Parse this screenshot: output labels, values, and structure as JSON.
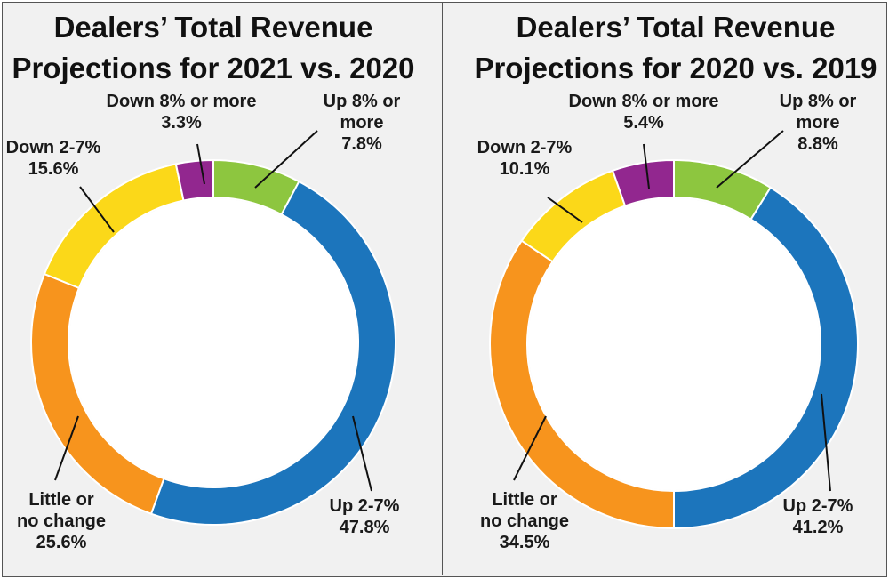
{
  "chart_data": [
    {
      "type": "pie",
      "title": [
        "Dealers’ Total Revenue",
        "Projections for 2021 vs. 2020"
      ],
      "categories": [
        "Up 8% or more",
        "Up 2-7%",
        "Little or no change",
        "Down 2-7%",
        "Down 8% or more"
      ],
      "values": [
        7.8,
        47.8,
        25.6,
        15.6,
        3.3
      ],
      "colors": [
        "#8dc63f",
        "#1c75bc",
        "#f7941d",
        "#fbd819",
        "#92278f"
      ],
      "labels": [
        {
          "lines": [
            "Up 8% or",
            "more",
            "7.8%"
          ]
        },
        {
          "lines": [
            "Up 2-7%",
            "47.8%"
          ]
        },
        {
          "lines": [
            "Little or",
            "no change",
            "25.6%"
          ]
        },
        {
          "lines": [
            "Down 2-7%",
            "15.6%"
          ]
        },
        {
          "lines": [
            "Down 8% or more",
            "3.3%"
          ]
        }
      ]
    },
    {
      "type": "pie",
      "title": [
        "Dealers’ Total Revenue",
        "Projections for 2020 vs. 2019"
      ],
      "categories": [
        "Up 8% or more",
        "Up 2-7%",
        "Little or no change",
        "Down 2-7%",
        "Down 8% or more"
      ],
      "values": [
        8.8,
        41.2,
        34.5,
        10.1,
        5.4
      ],
      "colors": [
        "#8dc63f",
        "#1c75bc",
        "#f7941d",
        "#fbd819",
        "#92278f"
      ],
      "labels": [
        {
          "lines": [
            "Up 8% or",
            "more",
            "8.8%"
          ]
        },
        {
          "lines": [
            "Up 2-7%",
            "41.2%"
          ]
        },
        {
          "lines": [
            "Little or",
            "no change",
            "34.5%"
          ]
        },
        {
          "lines": [
            "Down 2-7%",
            "10.1%"
          ]
        },
        {
          "lines": [
            "Down 8% or more",
            "5.4%"
          ]
        }
      ]
    }
  ]
}
